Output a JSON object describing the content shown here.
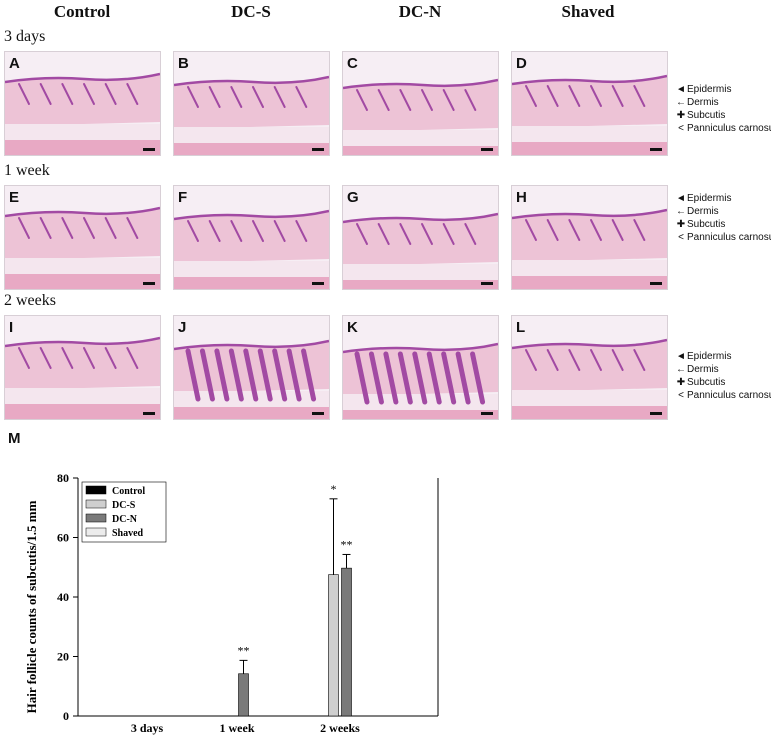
{
  "figure": {
    "columns": [
      "Control",
      "DC-S",
      "DC-N",
      "Shaved"
    ],
    "rows": [
      {
        "label": "3 days",
        "panels": [
          "A",
          "B",
          "C",
          "D"
        ]
      },
      {
        "label": "1 week",
        "panels": [
          "E",
          "F",
          "G",
          "H"
        ]
      },
      {
        "label": "2 weeks",
        "panels": [
          "I",
          "J",
          "K",
          "L"
        ]
      }
    ],
    "layer_labels": [
      {
        "symbol": "◄",
        "text": "Epidermis"
      },
      {
        "symbol": "←",
        "text": "Dermis"
      },
      {
        "symbol": "✚",
        "text": "Subcutis"
      },
      {
        "symbol": "<",
        "text": "Panniculus carnosus"
      }
    ],
    "panel_m_label": "M"
  },
  "colors": {
    "control": "#000000",
    "dc_s": "#cfcfcf",
    "dc_n": "#7a7a7a",
    "shaved": "#ececec",
    "tissue_pink": "#e8a9c4",
    "tissue_purple": "#a24aa3"
  },
  "chart_data": {
    "type": "bar",
    "title": "",
    "xlabel": "",
    "ylabel": "Hair follicle counts of subcutis/1.5 mm",
    "categories": [
      "3 days",
      "1 week",
      "2 weeks"
    ],
    "ylim": [
      0,
      80
    ],
    "yticks": [
      0,
      20,
      40,
      60,
      80
    ],
    "legend_position": "top-left",
    "series": [
      {
        "name": "Control",
        "values": [
          0,
          0,
          0
        ],
        "errors": [
          0,
          0,
          0
        ],
        "sig": [
          "",
          "",
          ""
        ]
      },
      {
        "name": "DC-S",
        "values": [
          0,
          0,
          47.5
        ],
        "errors": [
          0,
          0,
          25.5
        ],
        "sig": [
          "",
          "",
          "*"
        ]
      },
      {
        "name": "DC-N",
        "values": [
          0,
          14.2,
          49.7
        ],
        "errors": [
          0,
          4.5,
          4.6
        ],
        "sig": [
          "",
          "**",
          "**"
        ]
      },
      {
        "name": "Shaved",
        "values": [
          0,
          0,
          0
        ],
        "errors": [
          0,
          0,
          0
        ],
        "sig": [
          "",
          "",
          ""
        ]
      }
    ]
  }
}
